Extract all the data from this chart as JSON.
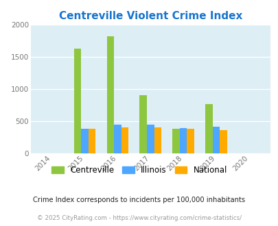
{
  "title": "Centreville Violent Crime Index",
  "years": [
    "2014",
    "2015",
    "2016",
    "2017",
    "2018",
    "2019",
    "2020"
  ],
  "centreville": [
    0,
    1630,
    1820,
    910,
    390,
    775,
    0
  ],
  "illinois": [
    0,
    390,
    455,
    455,
    400,
    415,
    0
  ],
  "national": [
    0,
    390,
    410,
    405,
    385,
    370,
    0
  ],
  "bar_width": 0.22,
  "colors": {
    "centreville": "#8dc63f",
    "illinois": "#4da6ff",
    "national": "#ffaa00"
  },
  "ylim": [
    0,
    2000
  ],
  "yticks": [
    0,
    500,
    1000,
    1500,
    2000
  ],
  "bg_color": "#ddeef5",
  "title_color": "#1874cd",
  "title_fontsize": 11,
  "footnote1": "Crime Index corresponds to incidents per 100,000 inhabitants",
  "footnote2": "© 2025 CityRating.com - https://www.cityrating.com/crime-statistics/"
}
